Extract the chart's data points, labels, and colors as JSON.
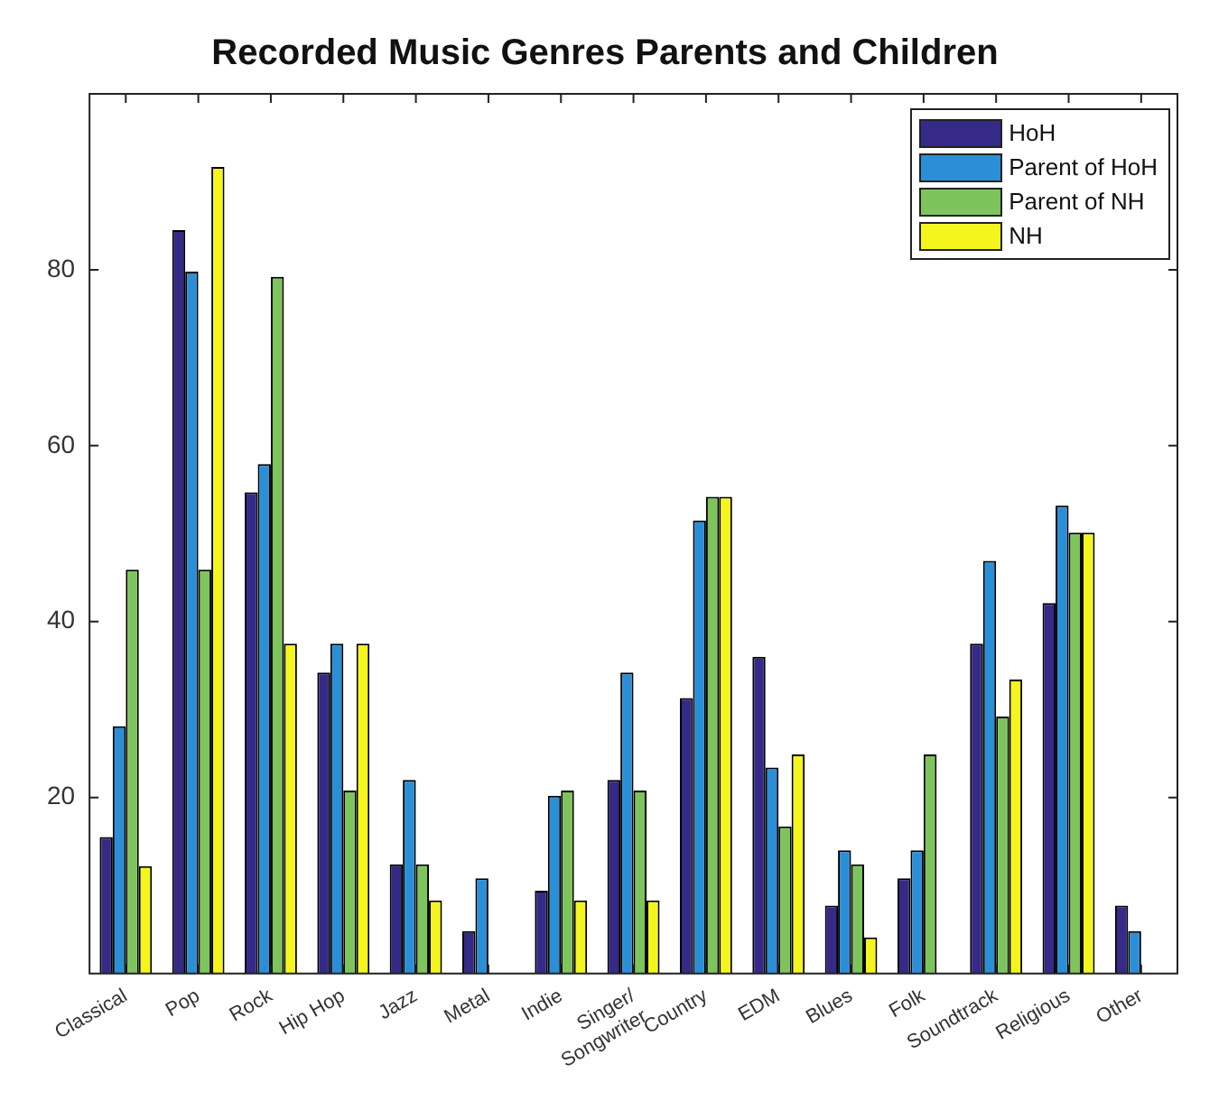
{
  "chart_data": {
    "type": "bar",
    "title": "Recorded Music Genres Parents and Children",
    "categories": [
      "Classical",
      "Pop",
      "Rock",
      "Hip Hop",
      "Jazz",
      "Metal",
      "Indie",
      "Singer/ Songwriter",
      "Country",
      "EDM",
      "Blues",
      "Folk",
      "Soundtrack",
      "Religious",
      "Other"
    ],
    "series": [
      {
        "name": "HoH",
        "color": "#352a87",
        "values": [
          15.5,
          84.5,
          54.7,
          34.2,
          12.4,
          4.8,
          9.4,
          22,
          31.3,
          36,
          7.7,
          10.8,
          37.5,
          42.1,
          7.7
        ]
      },
      {
        "name": "Parent of HoH",
        "color": "#2b8fd8",
        "values": [
          28.1,
          79.8,
          57.9,
          37.5,
          22,
          10.8,
          20.2,
          34.2,
          51.5,
          23.4,
          14,
          14,
          46.9,
          53.2,
          4.8
        ]
      },
      {
        "name": "Parent of NH",
        "color": "#7ec45c",
        "values": [
          45.9,
          45.9,
          79.2,
          20.8,
          12.4,
          null,
          20.8,
          20.8,
          54.2,
          16.7,
          12.4,
          24.9,
          29.2,
          50.1,
          null
        ]
      },
      {
        "name": "NH",
        "color": "#f5f51e",
        "values": [
          12.2,
          91.7,
          37.5,
          37.5,
          8.3,
          null,
          8.3,
          8.3,
          54.2,
          24.9,
          4.1,
          null,
          33.4,
          50.1,
          null
        ]
      }
    ],
    "ylim": [
      0,
      100
    ],
    "yticks": [
      20,
      40,
      60,
      80
    ],
    "grid": false,
    "legend": "top right"
  }
}
